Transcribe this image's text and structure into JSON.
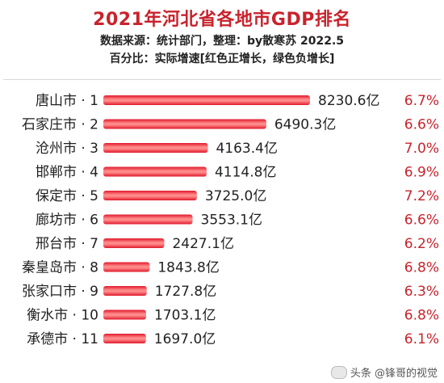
{
  "header": {
    "title": "2021年河北省各地市GDP排名",
    "source_line": "数据来源：统计部门，整理：by散寒苏 2022.5",
    "legend_line": "百分比：实际增速[红色正增长，绿色负增长]"
  },
  "watermark": {
    "text": "头条 @锋哥的视觉",
    "icon": "toutiao-logo-icon"
  },
  "colors": {
    "bar": "#e0182a",
    "bar_highlight": "#ff8a8a",
    "growth_text": "#c8232c",
    "title": "#c8232c"
  },
  "chart_data": {
    "type": "bar",
    "orientation": "horizontal",
    "title": "2021年河北省各地市GDP排名",
    "categories": [
      "唐山市 · 1",
      "石家庄市 · 2",
      "沧州市 · 3",
      "邯郸市 · 4",
      "保定市 · 5",
      "廊坊市 · 6",
      "邢台市 · 7",
      "秦皇岛市 · 8",
      "张家口市 · 9",
      "衡水市 · 10",
      "承德市 · 11"
    ],
    "series": [
      {
        "values": [
          8230.6,
          6490.3,
          4163.4,
          4114.8,
          3725.0,
          3553.1,
          2427.1,
          1843.8,
          1727.8,
          1703.1,
          1697.0
        ],
        "value_labels": [
          "8230.6亿",
          "6490.3亿",
          "4163.4亿",
          "4114.8亿",
          "3725.0亿",
          "3553.1亿",
          "2427.1亿",
          "1843.8亿",
          "1727.8亿",
          "1703.1亿",
          "1697.0亿"
        ]
      }
    ],
    "growth_labels": [
      "6.7%",
      "6.6%",
      "7.0%",
      "6.9%",
      "7.2%",
      "6.6%",
      "6.2%",
      "6.8%",
      "6.3%",
      "6.8%",
      "6.1%"
    ],
    "unit": "亿",
    "xlim": [
      0,
      8230.6
    ],
    "grid": false,
    "legend": "none"
  }
}
